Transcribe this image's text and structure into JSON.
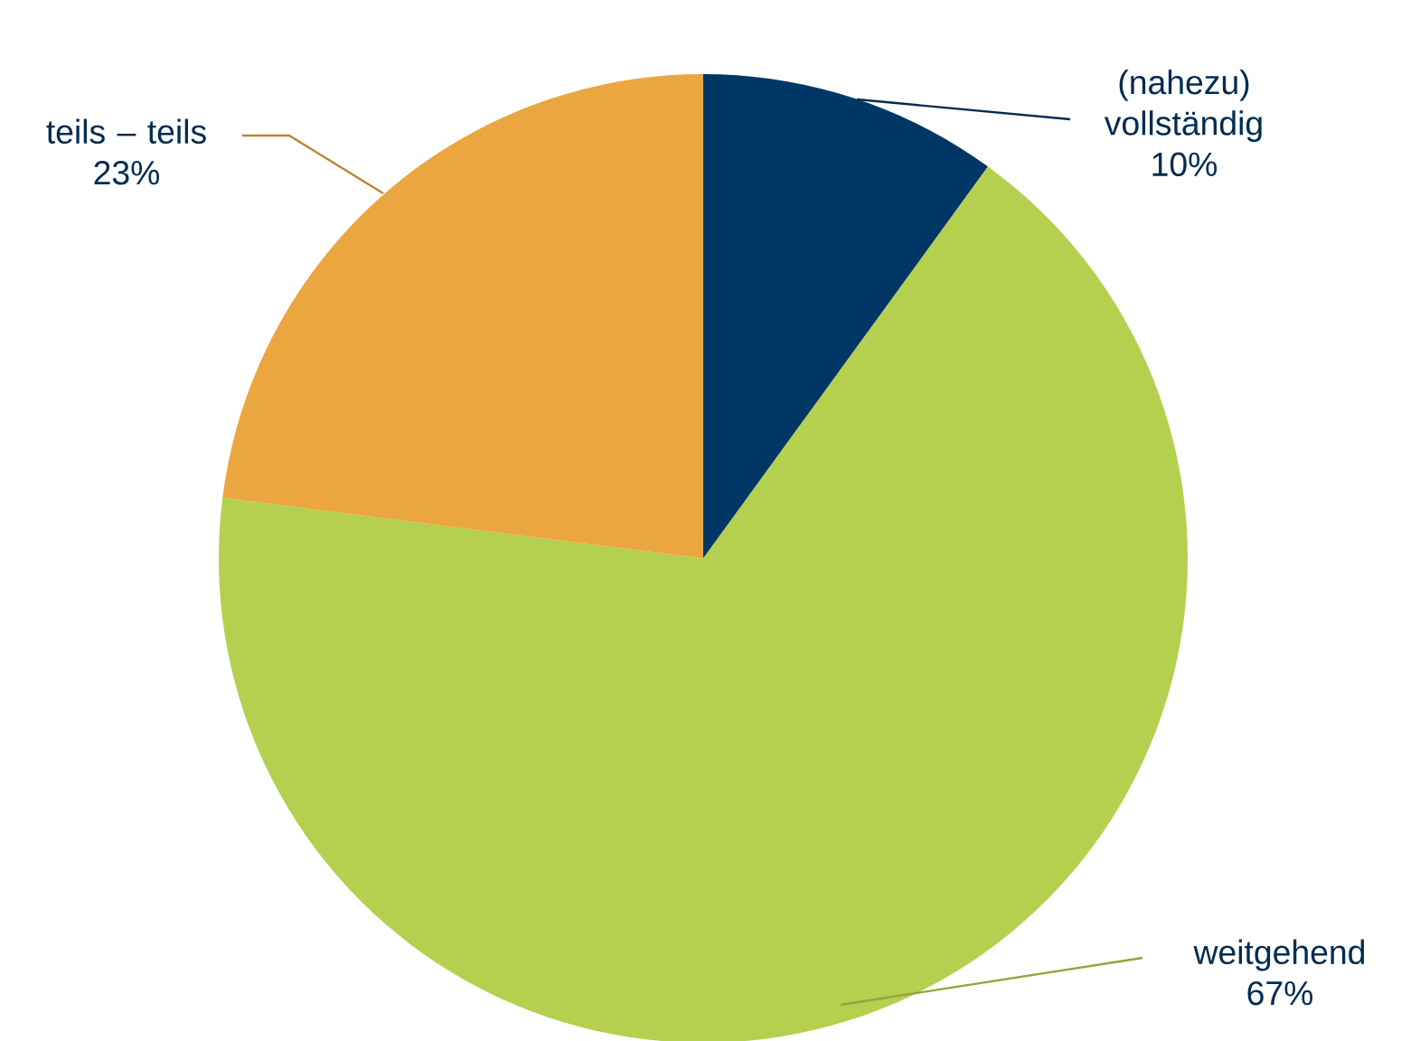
{
  "chart_data": {
    "type": "pie",
    "categories": [
      "(nahezu) vollständig",
      "weitgehend",
      "teils – teils"
    ],
    "values": [
      10,
      67,
      23
    ],
    "value_labels": [
      "10%",
      "67%",
      "23%"
    ],
    "colors": [
      "#003764",
      "#b5cf4f",
      "#eba63f"
    ]
  }
}
